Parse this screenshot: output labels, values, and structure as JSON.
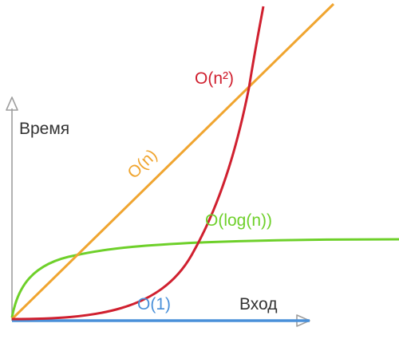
{
  "chart_data": {
    "type": "line",
    "xlabel": "Вход",
    "ylabel": "Время",
    "grid": false,
    "legend": "none",
    "series": [
      {
        "name": "O(1)",
        "color": "#4a90d9"
      },
      {
        "name": "O(log(n))",
        "color": "#6ed02a"
      },
      {
        "name": "O(n)",
        "color": "#f0a530"
      },
      {
        "name": "O(n²)",
        "color": "#d0202f"
      }
    ],
    "axis_color": "#9e9e9e"
  }
}
